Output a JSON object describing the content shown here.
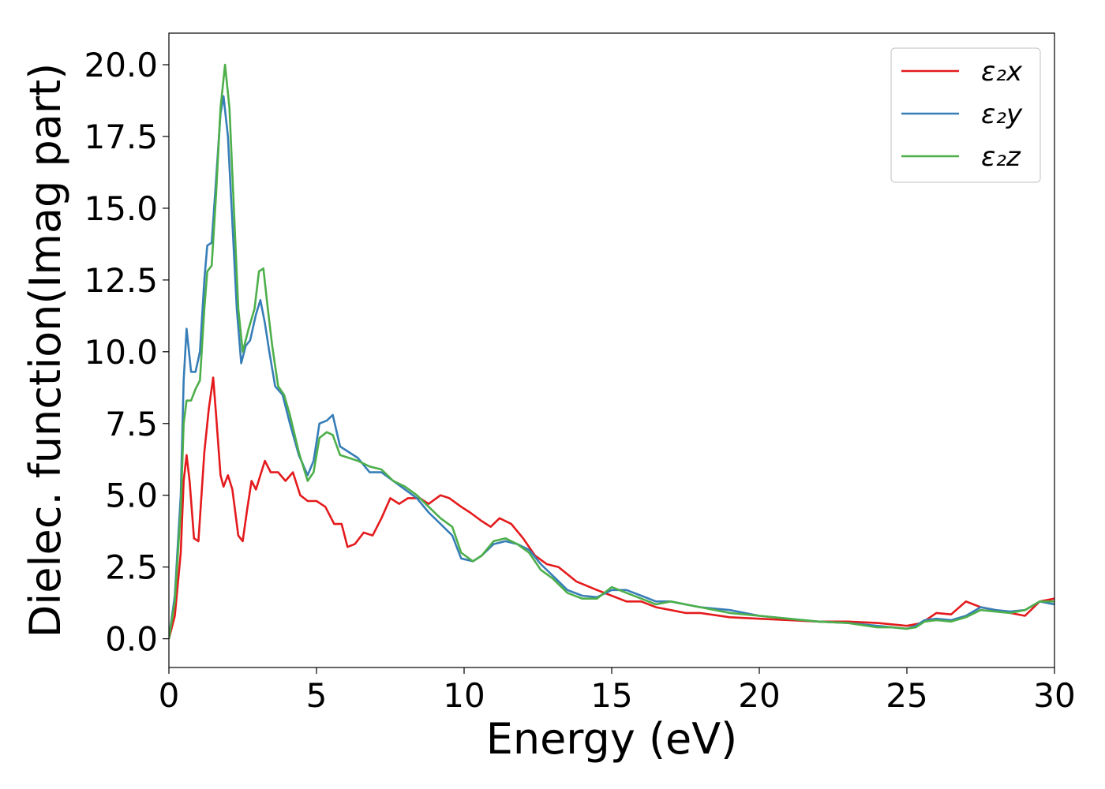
{
  "chart_data": {
    "type": "line",
    "xlabel": "Energy (eV)",
    "ylabel": "Dielec. function(Imag part)",
    "xlim": [
      0,
      30
    ],
    "ylim": [
      -1.0,
      21.1
    ],
    "xticks": [
      0,
      5,
      10,
      15,
      20,
      25,
      30
    ],
    "xtick_labels": [
      "0",
      "5",
      "10",
      "15",
      "20",
      "25",
      "30"
    ],
    "yticks": [
      0.0,
      2.5,
      5.0,
      7.5,
      10.0,
      12.5,
      15.0,
      17.5,
      20.0
    ],
    "ytick_labels": [
      "0.0",
      "2.5",
      "5.0",
      "7.5",
      "10.0",
      "12.5",
      "15.0",
      "17.5",
      "20.0"
    ],
    "grid": false,
    "legend_position": "top-right",
    "series": [
      {
        "name": "ε₂x",
        "color": "#e41a1c",
        "x": [
          0,
          0.2,
          0.4,
          0.5,
          0.6,
          0.7,
          0.85,
          1.0,
          1.2,
          1.35,
          1.5,
          1.6,
          1.75,
          1.85,
          2.0,
          2.15,
          2.35,
          2.5,
          2.65,
          2.8,
          2.95,
          3.1,
          3.25,
          3.45,
          3.7,
          3.95,
          4.2,
          4.45,
          4.7,
          5.0,
          5.3,
          5.6,
          5.85,
          6.05,
          6.3,
          6.6,
          6.9,
          7.2,
          7.5,
          7.8,
          8.1,
          8.5,
          8.8,
          9.2,
          9.5,
          9.9,
          10.2,
          10.6,
          10.9,
          11.2,
          11.6,
          12.0,
          12.4,
          12.8,
          13.2,
          13.8,
          14.5,
          15.0,
          15.5,
          16.0,
          16.5,
          17.0,
          17.5,
          18.0,
          19.0,
          20.0,
          21.0,
          22.0,
          23.0,
          24.0,
          25.0,
          25.5,
          26.0,
          26.5,
          27.0,
          27.5,
          28.0,
          28.5,
          29.0,
          29.5,
          30.0
        ],
        "values": [
          0.0,
          0.8,
          3.0,
          5.5,
          6.4,
          5.5,
          3.5,
          3.4,
          6.5,
          8.0,
          9.1,
          7.8,
          5.7,
          5.3,
          5.7,
          5.2,
          3.6,
          3.4,
          4.5,
          5.5,
          5.2,
          5.7,
          6.2,
          5.8,
          5.8,
          5.5,
          5.8,
          5.0,
          4.8,
          4.8,
          4.6,
          4.0,
          4.0,
          3.2,
          3.3,
          3.7,
          3.6,
          4.2,
          4.9,
          4.7,
          4.9,
          4.9,
          4.7,
          5.0,
          4.9,
          4.6,
          4.4,
          4.1,
          3.9,
          4.2,
          4.0,
          3.5,
          2.9,
          2.6,
          2.5,
          2.0,
          1.7,
          1.5,
          1.3,
          1.3,
          1.1,
          1.0,
          0.9,
          0.9,
          0.75,
          0.7,
          0.65,
          0.6,
          0.6,
          0.55,
          0.45,
          0.55,
          0.9,
          0.85,
          1.3,
          1.1,
          1.0,
          0.9,
          0.8,
          1.3,
          1.4
        ]
      },
      {
        "name": "ε₂y",
        "color": "#377eb8",
        "x": [
          0,
          0.2,
          0.4,
          0.5,
          0.6,
          0.75,
          0.9,
          1.05,
          1.2,
          1.3,
          1.45,
          1.6,
          1.75,
          1.85,
          2.0,
          2.15,
          2.3,
          2.45,
          2.6,
          2.75,
          2.95,
          3.1,
          3.25,
          3.4,
          3.6,
          3.85,
          4.1,
          4.4,
          4.7,
          4.9,
          5.1,
          5.35,
          5.55,
          5.8,
          6.1,
          6.4,
          6.8,
          7.2,
          7.6,
          8.0,
          8.4,
          8.8,
          9.2,
          9.6,
          9.9,
          10.3,
          10.6,
          11.0,
          11.4,
          11.8,
          12.2,
          12.6,
          13.0,
          13.5,
          14.0,
          14.5,
          15.0,
          15.5,
          16.0,
          16.5,
          17.0,
          17.5,
          18.0,
          18.5,
          19.0,
          20.0,
          21.0,
          22.0,
          23.0,
          24.0,
          24.5,
          25.0,
          25.3,
          25.6,
          26.0,
          26.5,
          27.0,
          27.5,
          28.0,
          28.5,
          29.0,
          29.5,
          30.0
        ],
        "values": [
          0.0,
          1.5,
          5.0,
          9.0,
          10.8,
          9.3,
          9.3,
          10.0,
          12.5,
          13.7,
          13.8,
          16.0,
          18.3,
          18.9,
          17.5,
          14.5,
          11.5,
          9.6,
          10.2,
          10.4,
          11.3,
          11.8,
          11.0,
          10.0,
          8.8,
          8.5,
          7.5,
          6.4,
          5.7,
          6.2,
          7.5,
          7.6,
          7.8,
          6.7,
          6.5,
          6.3,
          5.8,
          5.8,
          5.5,
          5.2,
          4.9,
          4.4,
          4.0,
          3.6,
          2.8,
          2.7,
          2.9,
          3.3,
          3.4,
          3.3,
          3.1,
          2.6,
          2.2,
          1.7,
          1.5,
          1.45,
          1.7,
          1.7,
          1.5,
          1.3,
          1.3,
          1.2,
          1.1,
          1.05,
          1.0,
          0.8,
          0.7,
          0.6,
          0.55,
          0.45,
          0.4,
          0.35,
          0.45,
          0.65,
          0.7,
          0.65,
          0.8,
          1.1,
          1.0,
          0.95,
          1.0,
          1.3,
          1.2
        ]
      },
      {
        "name": "ε₂z",
        "color": "#4daf4a",
        "x": [
          0,
          0.2,
          0.4,
          0.5,
          0.6,
          0.75,
          0.9,
          1.05,
          1.2,
          1.3,
          1.45,
          1.6,
          1.75,
          1.9,
          2.05,
          2.2,
          2.35,
          2.5,
          2.7,
          2.9,
          3.05,
          3.2,
          3.35,
          3.5,
          3.7,
          3.9,
          4.1,
          4.4,
          4.7,
          4.9,
          5.1,
          5.35,
          5.55,
          5.8,
          6.1,
          6.4,
          6.8,
          7.2,
          7.6,
          8.0,
          8.4,
          8.8,
          9.2,
          9.6,
          9.9,
          10.3,
          10.6,
          11.0,
          11.4,
          11.8,
          12.2,
          12.6,
          13.0,
          13.5,
          14.0,
          14.5,
          15.0,
          15.5,
          16.0,
          16.5,
          17.0,
          17.5,
          18.0,
          18.5,
          19.0,
          20.0,
          21.0,
          22.0,
          23.0,
          24.0,
          24.5,
          25.0,
          25.3,
          25.6,
          26.0,
          26.5,
          27.0,
          27.5,
          28.0,
          28.5,
          29.0,
          29.5,
          30.0
        ],
        "values": [
          0.0,
          1.3,
          4.5,
          7.5,
          8.3,
          8.3,
          8.7,
          9.0,
          11.5,
          12.8,
          13.0,
          15.5,
          18.5,
          20.0,
          18.5,
          15.0,
          11.5,
          10.0,
          10.8,
          11.5,
          12.8,
          12.9,
          11.5,
          10.2,
          8.8,
          8.5,
          7.8,
          6.5,
          5.5,
          5.8,
          7.0,
          7.2,
          7.1,
          6.4,
          6.3,
          6.2,
          6.0,
          5.9,
          5.5,
          5.3,
          5.0,
          4.6,
          4.2,
          3.9,
          3.0,
          2.7,
          2.9,
          3.4,
          3.5,
          3.3,
          3.0,
          2.4,
          2.1,
          1.6,
          1.4,
          1.4,
          1.8,
          1.6,
          1.4,
          1.2,
          1.3,
          1.2,
          1.1,
          1.0,
          0.9,
          0.8,
          0.7,
          0.6,
          0.55,
          0.4,
          0.4,
          0.35,
          0.4,
          0.6,
          0.65,
          0.6,
          0.75,
          1.0,
          0.95,
          0.9,
          1.0,
          1.3,
          1.3
        ]
      }
    ]
  }
}
